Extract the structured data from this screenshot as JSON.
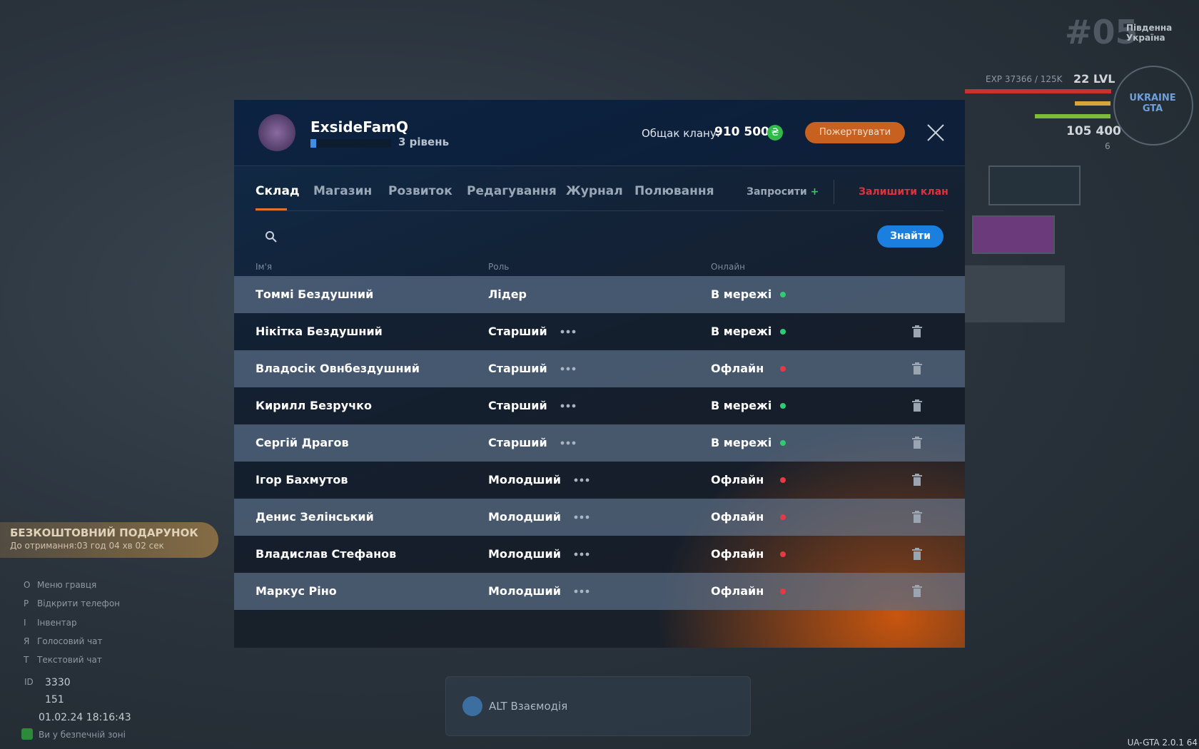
{
  "hud": {
    "logo": "#05",
    "region": "Південна Україна",
    "exp": "EXP 37366 / 125K",
    "level": "22 LVL",
    "money": "105 400",
    "small": "6",
    "brand": "UKRAINE GTA"
  },
  "gift": {
    "title": "БЕЗКОШТОВНИЙ ПОДАРУНОК",
    "timer": "До отримання:03 год 04 хв 02 сек"
  },
  "menu": [
    {
      "key": "O",
      "label": "Меню гравця"
    },
    {
      "key": "P",
      "label": "Відкрити телефон"
    },
    {
      "key": "I",
      "label": "Інвентар"
    },
    {
      "key": "Я",
      "label": "Голосовий чат"
    },
    {
      "key": "T",
      "label": "Текстовий чат"
    }
  ],
  "stats": {
    "id_label": "ID",
    "id": "3330",
    "online": "151",
    "datetime": "01.02.24 18:16:43",
    "zone": "Ви у безпечній зоні"
  },
  "interaction": "ALT Взаємодія",
  "version": "UA-GTA 2.0.1 64",
  "header": {
    "clan": "ExsideFamQ",
    "level": "3 рівень",
    "treasury_label": "Общак клану:",
    "treasury": "910 500",
    "donate": "Пожертвувати"
  },
  "tabs": [
    "Склад",
    "Магазин",
    "Розвиток",
    "Редагування",
    "Журнал",
    "Полювання"
  ],
  "invite": "Запросити",
  "leave": "Залишити клан",
  "search_button": "Знайти",
  "table": {
    "columns": [
      "Ім'я",
      "Роль",
      "Онлайн"
    ],
    "rows": [
      {
        "name": "Томмі Бездушний",
        "role": "Лідер",
        "status": "В мережі",
        "dot": "#2ecc71"
      },
      {
        "name": "Нікітка Бездушний",
        "role": "Старший",
        "status": "В мережі",
        "dot": "#2ecc71"
      },
      {
        "name": "Владосік Овнбездушний",
        "role": "Старший",
        "status": "Офлайн",
        "dot": "#e53945"
      },
      {
        "name": "Кирилл Безручко",
        "role": "Старший",
        "status": "В мережі",
        "dot": "#2ecc71"
      },
      {
        "name": "Сергій Драгов",
        "role": "Старший",
        "status": "В мережі",
        "dot": "#2ecc71"
      },
      {
        "name": "Ігор Бахмутов",
        "role": "Молодший",
        "status": "Офлайн",
        "dot": "#e53945"
      },
      {
        "name": "Денис Зелінський",
        "role": "Молодший",
        "status": "Офлайн",
        "dot": "#e53945"
      },
      {
        "name": "Владислав Стефанов",
        "role": "Молодший",
        "status": "Офлайн",
        "dot": "#e53945"
      },
      {
        "name": "Маркус Ріно",
        "role": "Молодший",
        "status": "Офлайн",
        "dot": "#e53945"
      }
    ]
  }
}
